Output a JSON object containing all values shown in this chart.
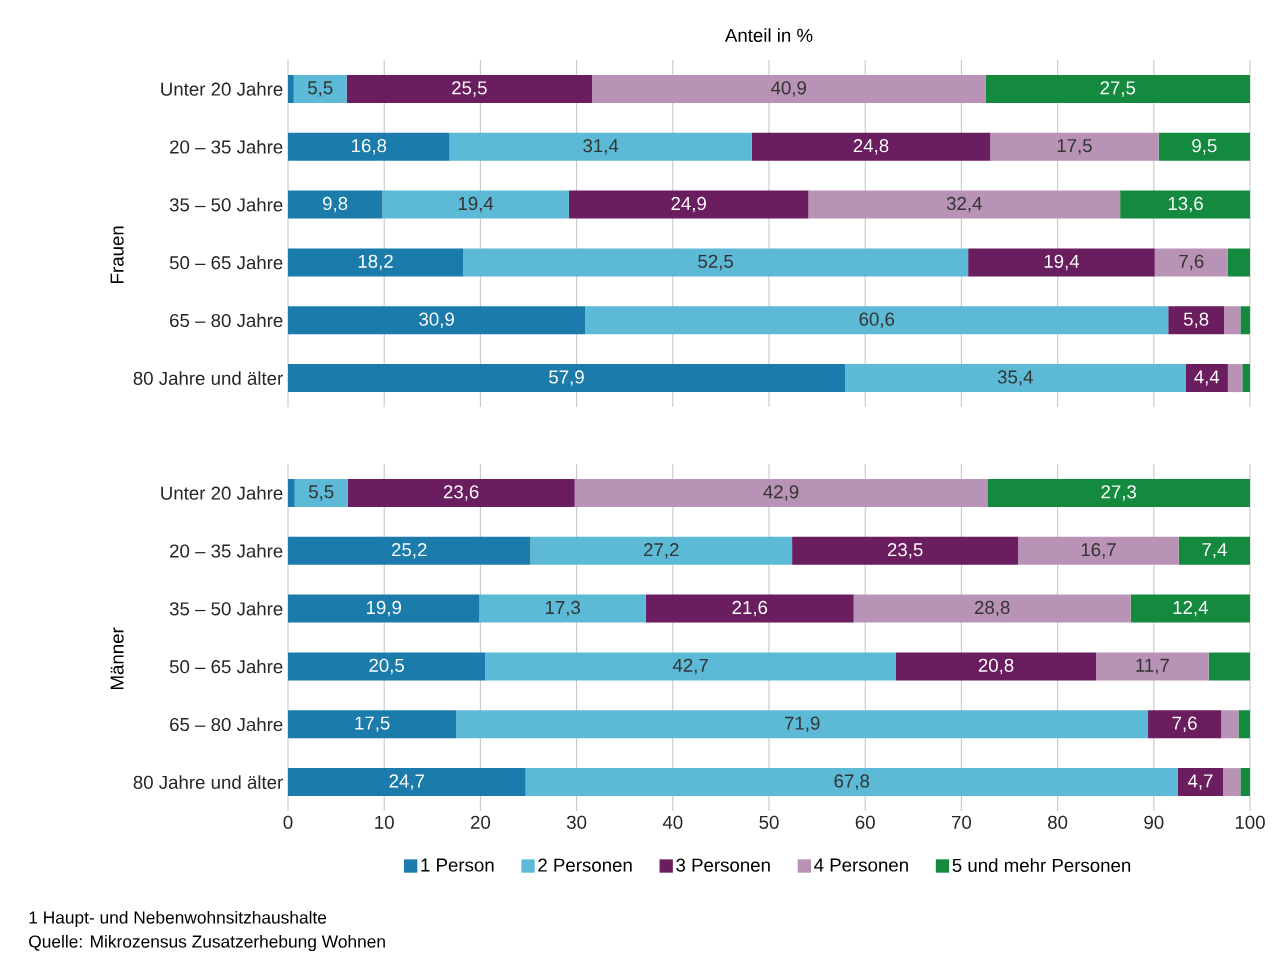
{
  "chart_data": [
    {
      "type": "bar",
      "orientation": "horizontal",
      "stacked": true,
      "title": "Anteil in %",
      "ylabel": "Frauen",
      "tick_labels": "y",
      "grid": "x",
      "legend": false,
      "categories": [
        "Unter 20 Jahre",
        "20 – 35 Jahre",
        "35 – 50 Jahre",
        "50 – 65 Jahre",
        "65 – 80 Jahre",
        "80 Jahre und älter"
      ],
      "xlim": [
        0,
        100
      ],
      "xticks": [
        0,
        10,
        20,
        30,
        40,
        50,
        60,
        70,
        80,
        90,
        100
      ],
      "series": [
        {
          "color": "#1b7bab",
          "values": [
            0.6,
            16.8,
            9.8,
            18.2,
            30.9,
            57.9
          ],
          "value_labels": [
            null,
            "16,8",
            "9,8",
            "18,2",
            "30,9",
            "57,9"
          ]
        },
        {
          "color": "#5cbad6",
          "values": [
            5.5,
            31.4,
            19.4,
            52.5,
            60.6,
            35.4
          ],
          "value_labels": [
            "5,5",
            "31,4",
            "19,4",
            "52,5",
            "60,6",
            "35,4"
          ]
        },
        {
          "color": "#6a1d5f",
          "values": [
            25.5,
            24.8,
            24.9,
            19.4,
            5.8,
            4.4
          ],
          "value_labels": [
            "25,5",
            "24,8",
            "24,9",
            "19,4",
            "5,8",
            "4,4"
          ]
        },
        {
          "color": "#b993b6",
          "values": [
            40.9,
            17.5,
            32.4,
            7.6,
            1.7,
            1.5
          ],
          "value_labels": [
            "40,9",
            "17,5",
            "32,4",
            "7,6",
            null,
            null
          ]
        },
        {
          "color": "#138a3e",
          "values": [
            27.5,
            9.5,
            13.6,
            2.3,
            1.0,
            0.8
          ],
          "value_labels": [
            "27,5",
            "9,5",
            "13,6",
            null,
            null,
            null
          ]
        }
      ]
    },
    {
      "type": "bar",
      "orientation": "horizontal",
      "stacked": true,
      "ylabel": "Männer",
      "grid": "x",
      "legend": "bottom",
      "categories": [
        "Unter 20 Jahre",
        "20 – 35 Jahre",
        "35 – 50 Jahre",
        "50 – 65 Jahre",
        "65 – 80 Jahre",
        "80 Jahre und älter"
      ],
      "xlim": [
        0,
        100
      ],
      "xticks": [
        0,
        10,
        20,
        30,
        40,
        50,
        60,
        70,
        80,
        90,
        100
      ],
      "series": [
        {
          "name": "1 Person",
          "color": "#1b7bab",
          "values": [
            0.7,
            25.2,
            19.9,
            20.5,
            17.5,
            24.7
          ],
          "value_labels": [
            null,
            "25,2",
            "19,9",
            "20,5",
            "17,5",
            "24,7"
          ]
        },
        {
          "name": "2 Personen",
          "color": "#5cbad6",
          "values": [
            5.5,
            27.2,
            17.3,
            42.7,
            71.9,
            67.8
          ],
          "value_labels": [
            "5,5",
            "27,2",
            "17,3",
            "42,7",
            "71,9",
            "67,8"
          ]
        },
        {
          "name": "3 Personen",
          "color": "#6a1d5f",
          "values": [
            23.6,
            23.5,
            21.6,
            20.8,
            7.6,
            4.7
          ],
          "value_labels": [
            "23,6",
            "23,5",
            "21,6",
            "20,8",
            "7,6",
            "4,7"
          ]
        },
        {
          "name": "4 Personen",
          "color": "#b993b6",
          "values": [
            42.9,
            16.7,
            28.8,
            11.7,
            1.8,
            1.8
          ],
          "value_labels": [
            "42,9",
            "16,7",
            "28,8",
            "11,7",
            null,
            null
          ]
        },
        {
          "name": "5 und mehr Personen",
          "color": "#138a3e",
          "values": [
            27.3,
            7.4,
            12.4,
            4.3,
            1.2,
            1.0
          ],
          "value_labels": [
            "27,3",
            "7,4",
            "12,4",
            null,
            null,
            null
          ]
        }
      ],
      "annotations": [
        "1 Haupt- und Nebenwohnsitzhaushalte",
        "Quelle: Mikrozensus Zusatzerhebung Wohnen"
      ]
    }
  ]
}
